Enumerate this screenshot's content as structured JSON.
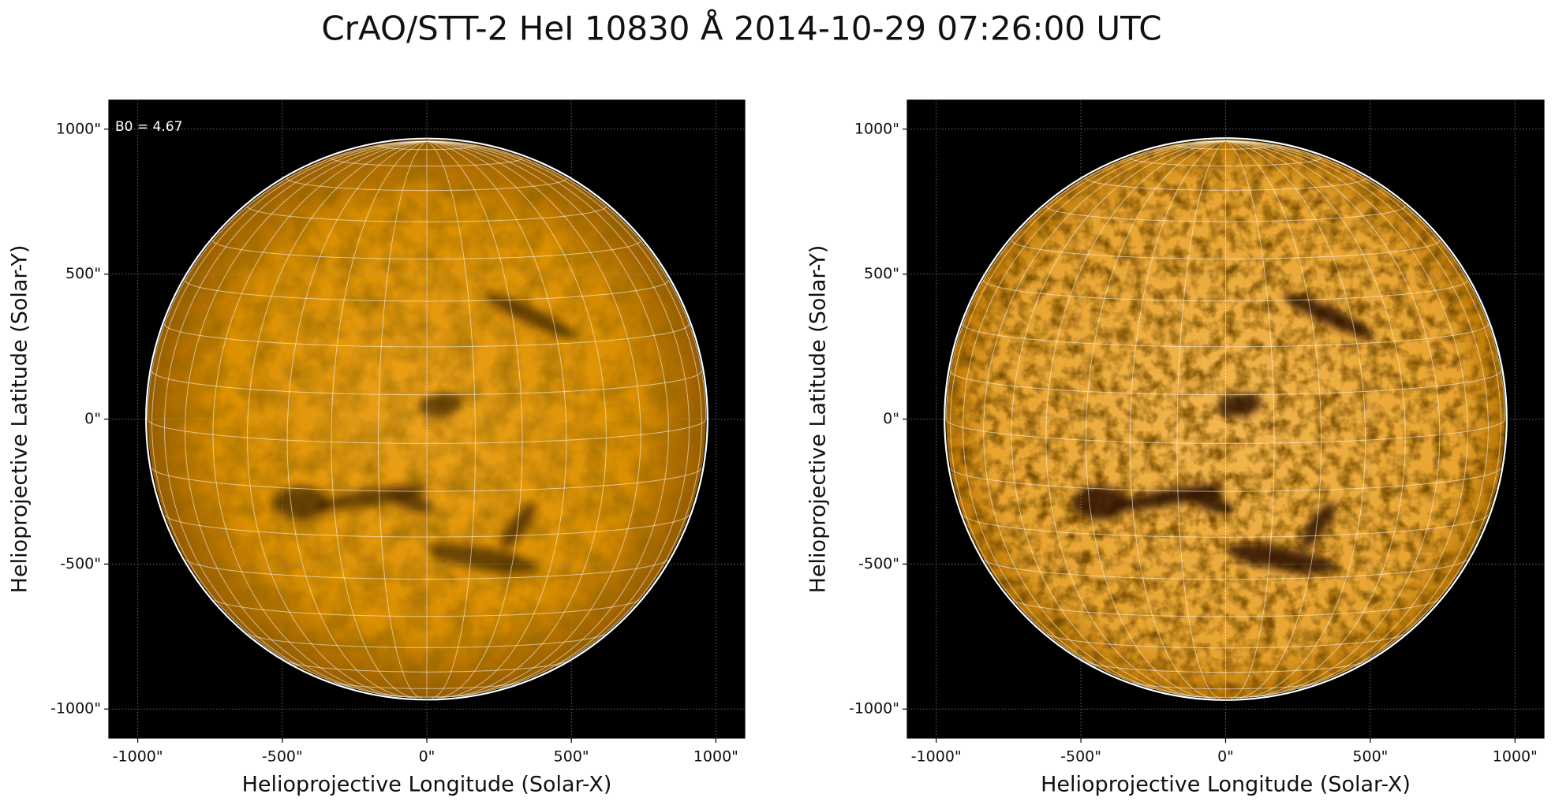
{
  "title": "CrAO/STT-2 HeI 10830 Å 2014-10-29 07:26:00 UTC",
  "chart_data": [
    {
      "type": "image",
      "xlabel": "Helioprojective Longitude (Solar-X)",
      "ylabel": "Helioprojective Latitude (Solar-Y)",
      "annotation": "B0 = 4.67",
      "xlim": [
        -1100,
        1100
      ],
      "ylim": [
        -1100,
        1100
      ],
      "xticks": [
        {
          "value": -1000,
          "label": "-1000\""
        },
        {
          "value": -500,
          "label": "-500\""
        },
        {
          "value": 0,
          "label": "0\""
        },
        {
          "value": 500,
          "label": "500\""
        },
        {
          "value": 1000,
          "label": "1000\""
        }
      ],
      "yticks": [
        {
          "value": -1000,
          "label": "-1000\""
        },
        {
          "value": -500,
          "label": "-500\""
        },
        {
          "value": 0,
          "label": "0\""
        },
        {
          "value": 500,
          "label": "500\""
        },
        {
          "value": 1000,
          "label": "1000\""
        }
      ],
      "grid": true
    },
    {
      "type": "image",
      "xlabel": "Helioprojective Longitude (Solar-X)",
      "ylabel": "Helioprojective Latitude (Solar-Y)",
      "xlim": [
        -1100,
        1100
      ],
      "ylim": [
        -1100,
        1100
      ],
      "xticks": [
        {
          "value": -1000,
          "label": "-1000\""
        },
        {
          "value": -500,
          "label": "-500\""
        },
        {
          "value": 0,
          "label": "0\""
        },
        {
          "value": 500,
          "label": "500\""
        },
        {
          "value": 1000,
          "label": "1000\""
        }
      ],
      "yticks": [
        {
          "value": -1000,
          "label": "-1000\""
        },
        {
          "value": -500,
          "label": "-500\""
        },
        {
          "value": 0,
          "label": "0\""
        },
        {
          "value": 500,
          "label": "500\""
        },
        {
          "value": 1000,
          "label": "1000\""
        }
      ],
      "grid": true
    }
  ]
}
